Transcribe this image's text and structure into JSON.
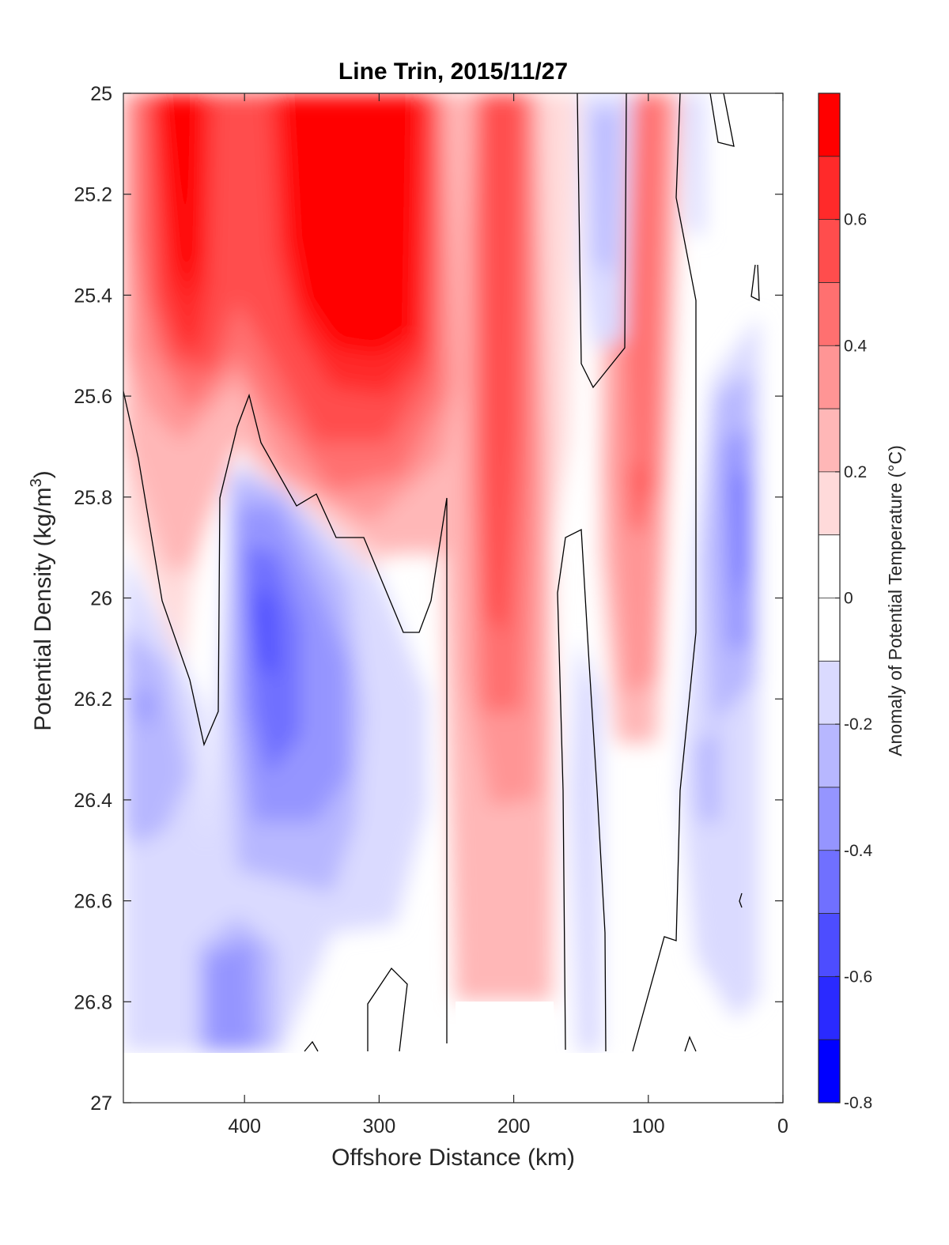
{
  "chart_data": {
    "type": "contourf",
    "title": "Line Trin, 2015/11/27",
    "xlabel": "Offshore Distance (km)",
    "ylabel_main": "Potential Density (kg/m",
    "ylabel_sup": "3",
    "ylabel_close": ")",
    "colorbar_label": "Anomaly of Potential Temperature (°C)",
    "xlim": [
      490,
      0
    ],
    "ylim": [
      25,
      27
    ],
    "y_reversed": true,
    "x_reversed": true,
    "xticks": [
      400,
      300,
      200,
      100,
      0
    ],
    "xtick_labels": [
      "400",
      "300",
      "200",
      "100",
      "0"
    ],
    "yticks": [
      25,
      25.2,
      25.4,
      25.6,
      25.8,
      26,
      26.2,
      26.4,
      26.6,
      26.8,
      27
    ],
    "ytick_labels": [
      "25",
      "25.2",
      "25.4",
      "25.6",
      "25.8",
      "26",
      "26.2",
      "26.4",
      "26.6",
      "26.8",
      "27"
    ],
    "clim": [
      -0.8,
      0.8
    ],
    "level_step": 0.1,
    "colorbar_ticks": [
      0.6,
      0.4,
      0.2,
      0,
      -0.2,
      -0.4,
      -0.6,
      -0.8
    ],
    "colorbar_tick_labels": [
      "0.6",
      "0.4",
      "0.2",
      "0",
      "-0.2",
      "-0.4",
      "-0.6",
      "-0.8"
    ],
    "colorbar_colors": [
      "#ff0000",
      "#ff2a2a",
      "#ff4d4d",
      "#ff7070",
      "#ff9595",
      "#ffb7b7",
      "#ffdada",
      "#ffffff",
      "#ffffff",
      "#dadaff",
      "#b7b7ff",
      "#9595ff",
      "#7070ff",
      "#4d4dff",
      "#2a2aff",
      "#0000ff"
    ],
    "contour_line_level": 0,
    "anomaly_features": [
      {
        "label": "warm core",
        "x_range": [
          470,
          420
        ],
        "density_range": [
          25.0,
          25.5
        ],
        "max_anomaly": 0.8
      },
      {
        "label": "warm core",
        "x_range": [
          370,
          260
        ],
        "density_range": [
          25.0,
          25.6
        ],
        "max_anomaly": 0.8
      },
      {
        "label": "warm core",
        "x_range": [
          230,
          170
        ],
        "density_range": [
          25.0,
          26.8
        ],
        "max_anomaly": 0.6
      },
      {
        "label": "warm core",
        "x_range": [
          130,
          80
        ],
        "density_range": [
          25.0,
          26.3
        ],
        "max_anomaly": 0.5
      },
      {
        "label": "cold core",
        "x_range": [
          410,
          330
        ],
        "density_range": [
          25.7,
          26.6
        ],
        "min_anomaly": -0.6
      },
      {
        "label": "cold core",
        "x_range": [
          490,
          410
        ],
        "density_range": [
          25.7,
          26.9
        ],
        "min_anomaly": -0.3
      },
      {
        "label": "cold core",
        "x_range": [
          430,
          370
        ],
        "density_range": [
          26.6,
          26.9
        ],
        "min_anomaly": -0.4
      },
      {
        "label": "cold core",
        "x_range": [
          150,
          120
        ],
        "density_range": [
          25.0,
          25.5
        ],
        "min_anomaly": -0.3
      },
      {
        "label": "cold core",
        "x_range": [
          60,
          20
        ],
        "density_range": [
          25.5,
          26.8
        ],
        "min_anomaly": -0.4
      }
    ]
  }
}
